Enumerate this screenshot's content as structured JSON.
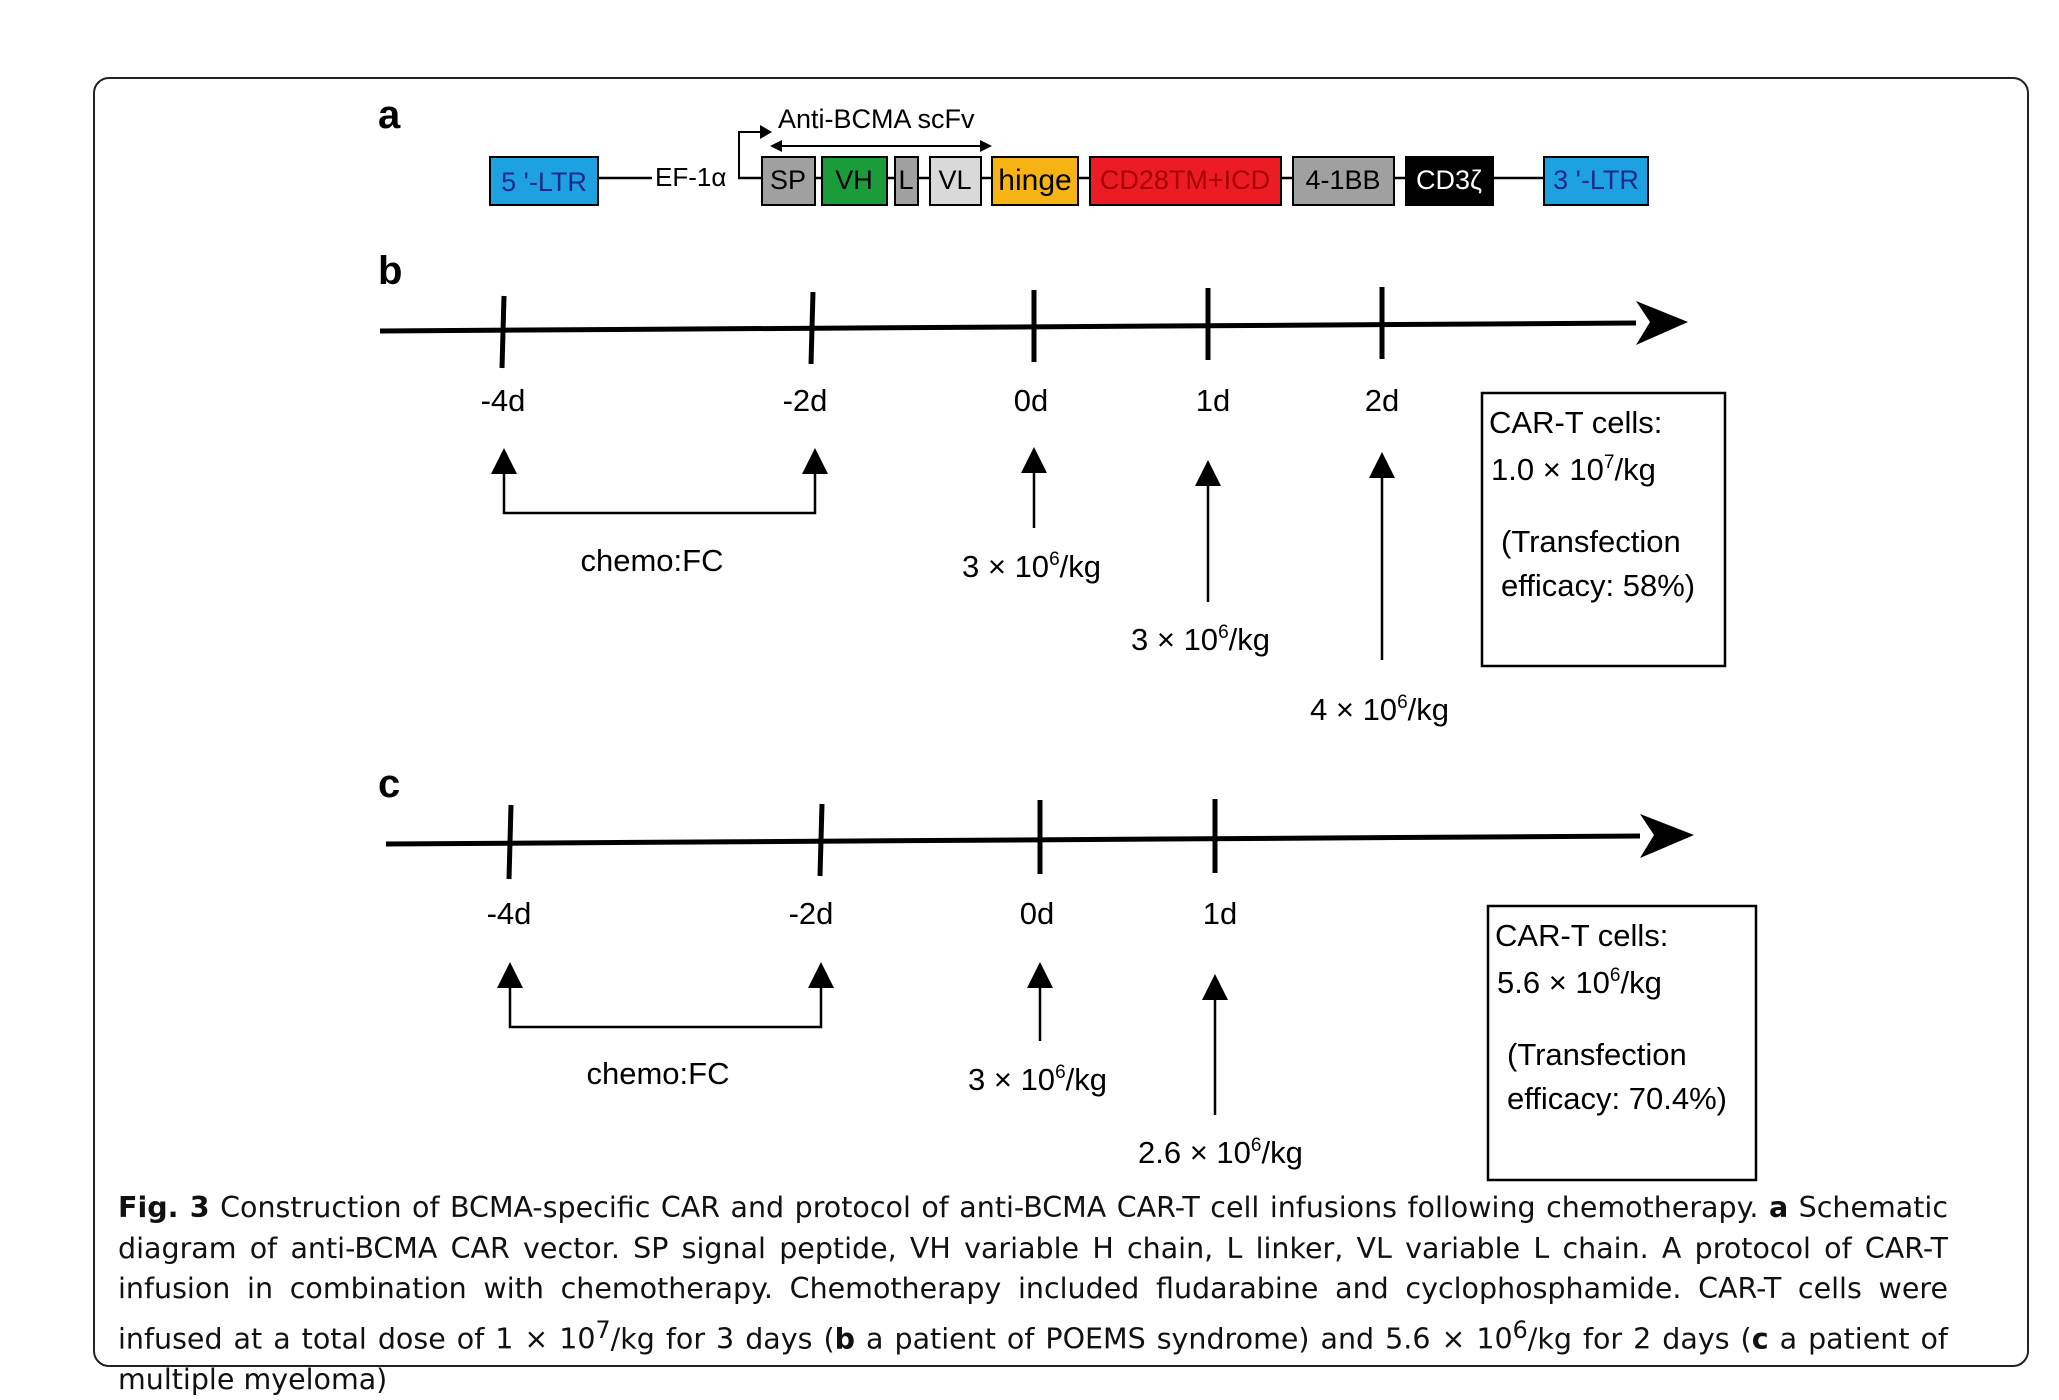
{
  "panels": {
    "a": "a",
    "b": "b",
    "c": "c"
  },
  "vector": {
    "scfv_label": "Anti-BCMA scFv",
    "promoter": "EF-1α",
    "segments": [
      {
        "label": "5 '-LTR",
        "fill": "#1da1e1",
        "text_color": "#1c2b87"
      },
      {
        "label": "SP",
        "fill": "#a0a0a0",
        "text_color": "#000000"
      },
      {
        "label": "VH",
        "fill": "#1a9c3a",
        "text_color": "#000000"
      },
      {
        "label": "L",
        "fill": "#a0a0a0",
        "text_color": "#000000"
      },
      {
        "label": "VL",
        "fill": "#d9d9d9",
        "text_color": "#000000"
      },
      {
        "label": "hinge",
        "fill": "#f7b314",
        "text_color": "#000000"
      },
      {
        "label": "CD28TM+ICD",
        "fill": "#ec1c24",
        "text_color": "#a80000"
      },
      {
        "label": "4-1BB",
        "fill": "#a0a0a0",
        "text_color": "#000000"
      },
      {
        "label": "CD3ζ",
        "fill": "#000000",
        "text_color": "#ffffff"
      },
      {
        "label": "3 '-LTR",
        "fill": "#1da1e1",
        "text_color": "#1c2b87"
      }
    ]
  },
  "timeline_b": {
    "days": [
      "-4d",
      "-2d",
      "0d",
      "1d",
      "2d"
    ],
    "chemo_label": "chemo:FC",
    "doses": [
      {
        "prefix": "3 × 10",
        "exp": "6",
        "suffix": "/kg"
      },
      {
        "prefix": "3 × 10",
        "exp": "6",
        "suffix": "/kg"
      },
      {
        "prefix": "4 × 10",
        "exp": "6",
        "suffix": "/kg"
      }
    ],
    "summary": {
      "title": "CAR-T cells:",
      "total_prefix": "1.0 × 10",
      "total_exp": "7",
      "total_suffix": "/kg",
      "efficacy_line1": "(Transfection",
      "efficacy_line2": "efficacy: 58%)"
    }
  },
  "timeline_c": {
    "days": [
      "-4d",
      "-2d",
      "0d",
      "1d"
    ],
    "chemo_label": "chemo:FC",
    "doses": [
      {
        "prefix": "3 × 10",
        "exp": "6",
        "suffix": "/kg"
      },
      {
        "prefix": "2.6 × 10",
        "exp": "6",
        "suffix": "/kg"
      }
    ],
    "summary": {
      "title": "CAR-T cells:",
      "total_prefix": "5.6 × 10",
      "total_exp": "6",
      "total_suffix": "/kg",
      "efficacy_line1": "(Transfection",
      "efficacy_line2": "efficacy: 70.4%)"
    }
  },
  "caption": {
    "fig_label": "Fig. 3",
    "t1": " Construction of BCMA-specific CAR and protocol of anti-BCMA CAR-T cell infusions following chemotherapy. ",
    "a": "a",
    "t2": " Schematic diagram of anti-BCMA CAR vector. SP signal peptide, VH variable H chain, L linker, VL variable L chain. A protocol of CAR-T infusion in combination with chemotherapy. Chemotherapy included fludarabine and cyclophosphamide. CAR-T cells were infused at a total dose of 1 × 10",
    "sup1": "7",
    "t3": "/kg for 3 days (",
    "b": "b",
    "t4": " a patient of POEMS syndrome) and 5.6 × 10",
    "sup2": "6",
    "t5": "/kg for 2 days (",
    "c": "c",
    "t6": " a patient of multiple myeloma)"
  }
}
